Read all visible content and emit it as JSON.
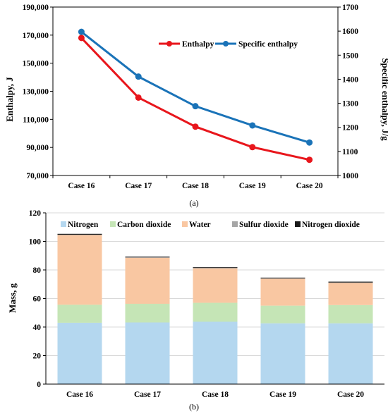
{
  "chart_data": [
    {
      "type": "line",
      "panel_label": "(a)",
      "categories": [
        "Case 16",
        "Case 17",
        "Case 18",
        "Case 19",
        "Case 20"
      ],
      "ylabel": "Enthalpy, J",
      "y2label": "Specific enthalpy, J/g",
      "ylim": [
        70000,
        190000
      ],
      "y2lim": [
        1000,
        1700
      ],
      "yticks": [
        "70,000",
        "90,000",
        "110,000",
        "130,000",
        "150,000",
        "170,000",
        "190,000"
      ],
      "y2ticks": [
        "1000",
        "1100",
        "1200",
        "1300",
        "1400",
        "1500",
        "1600",
        "1700"
      ],
      "grid": false,
      "legend_position": "top-right",
      "series": [
        {
          "name": "Enthalpy",
          "axis": "left",
          "color": "#e8161c",
          "values": [
            168000,
            125500,
            104800,
            90200,
            81200
          ]
        },
        {
          "name": "Specific enthalpy",
          "axis": "right",
          "color": "#1a73b8",
          "values": [
            1597,
            1411,
            1288,
            1208,
            1137
          ]
        }
      ]
    },
    {
      "type": "bar",
      "stacked": true,
      "panel_label": "(b)",
      "categories": [
        "Case 16",
        "Case 17",
        "Case 18",
        "Case 19",
        "Case 20"
      ],
      "ylabel": "Mass, g",
      "ylim": [
        0,
        120
      ],
      "yticks": [
        "0",
        "20",
        "40",
        "60",
        "80",
        "100",
        "120"
      ],
      "grid": true,
      "legend_position": "top",
      "series": [
        {
          "name": "Nitrogen",
          "color": "#b4d7ef",
          "values": [
            43,
            43.2,
            43.7,
            42.6,
            42.6
          ]
        },
        {
          "name": "Carbon dioxide",
          "color": "#c5e5b6",
          "values": [
            12.6,
            13.1,
            13.3,
            12.4,
            12.8
          ]
        },
        {
          "name": "Water",
          "color": "#f9c7a2",
          "values": [
            48.9,
            32.3,
            24.2,
            18.9,
            15.6
          ]
        },
        {
          "name": "Sulfur dioxide",
          "color": "#a6a6a6",
          "values": [
            0.2,
            0.2,
            0.2,
            0.2,
            0.2
          ]
        },
        {
          "name": "Nitrogen dioxide",
          "color": "#1a1a1a",
          "values": [
            0.6,
            0.5,
            0.5,
            0.5,
            0.6
          ]
        }
      ]
    }
  ]
}
